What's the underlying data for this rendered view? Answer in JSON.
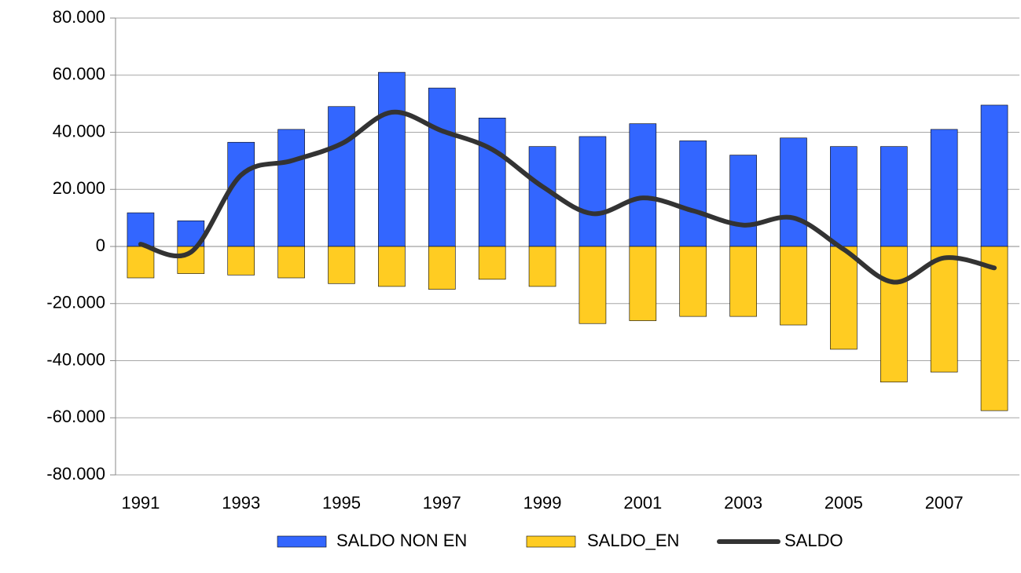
{
  "chart_data": {
    "type": "bar",
    "categories": [
      "1991",
      null,
      "1993",
      null,
      "1995",
      null,
      "1997",
      null,
      "1999",
      null,
      "2001",
      null,
      "2003",
      null,
      "2005",
      null,
      "2007",
      null
    ],
    "series": [
      {
        "name": "SALDO NON EN",
        "color": "#3366ff",
        "values": [
          11800,
          9000,
          36500,
          41000,
          49000,
          61000,
          55500,
          45000,
          35000,
          38500,
          43000,
          37000,
          32000,
          38000,
          35000,
          35000,
          41000,
          49500
        ]
      },
      {
        "name": "SALDO_EN",
        "color": "#ffcc22",
        "values": [
          -11000,
          -9500,
          -10000,
          -11000,
          -13000,
          -14000,
          -15000,
          -11500,
          -14000,
          -27000,
          -26000,
          -24500,
          -24500,
          -27500,
          -36000,
          -47500,
          -44000,
          -57500
        ]
      },
      {
        "name": "SALDO",
        "type": "line",
        "color": "#333333",
        "values": [
          800,
          -2000,
          25000,
          30000,
          36000,
          47000,
          40500,
          34000,
          21000,
          11500,
          17000,
          12500,
          7500,
          10000,
          -1000,
          -12500,
          -4000,
          -7500
        ]
      }
    ],
    "ylim": [
      -80000,
      80000
    ],
    "yticks": [
      {
        "value": -80000,
        "label": "-80.000"
      },
      {
        "value": -60000,
        "label": "-60.000"
      },
      {
        "value": -40000,
        "label": "-40.000"
      },
      {
        "value": -20000,
        "label": "-20.000"
      },
      0,
      {
        "value": 20000,
        "label": "20.000"
      },
      {
        "value": 40000,
        "label": "40.000"
      },
      {
        "value": 60000,
        "label": "60.000"
      },
      {
        "value": 80000,
        "label": "80.000"
      }
    ],
    "grid": true,
    "legend": "bottom"
  }
}
